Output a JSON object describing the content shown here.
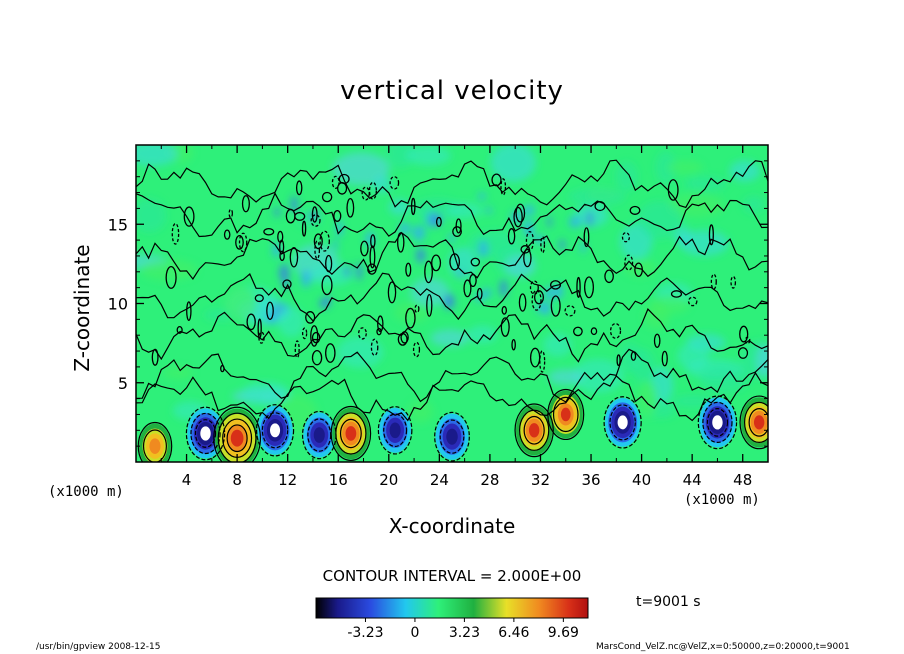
{
  "chart_data": {
    "type": "heatmap",
    "title": "vertical velocity",
    "xlabel": "X-coordinate",
    "ylabel": "Z-coordinate",
    "x_unit_label": "(x1000 m)",
    "x_ticks": [
      4,
      8,
      12,
      16,
      20,
      24,
      28,
      32,
      36,
      40,
      44,
      48
    ],
    "y_ticks": [
      5,
      10,
      15
    ],
    "xlim": [
      0,
      50
    ],
    "ylim": [
      0,
      20
    ],
    "contour_interval": "CONTOUR INTERVAL = 2.000E+00",
    "colorbar_ticks": [
      "-3.23",
      "0",
      "3.23",
      "6.46",
      "9.69"
    ],
    "colorbar_range": [
      -6.46,
      11.3
    ],
    "time_label": "t=9001 s",
    "colors": {
      "background_field": "#2ef07a",
      "negative_core": "#1a1a9a",
      "positive_core": "#ff6a1a",
      "contour": "#000000"
    },
    "features": [
      {
        "kind": "downdraft",
        "x": 5.5,
        "z": 1.8,
        "w": -6.0
      },
      {
        "kind": "updraft",
        "x": 8.0,
        "z": 1.5,
        "w": 9.5
      },
      {
        "kind": "downdraft",
        "x": 11.0,
        "z": 2.0,
        "w": -5.5
      },
      {
        "kind": "downdraft",
        "x": 14.5,
        "z": 1.7,
        "w": -4.0
      },
      {
        "kind": "updraft",
        "x": 17.0,
        "z": 1.8,
        "w": 6.5
      },
      {
        "kind": "downdraft",
        "x": 20.5,
        "z": 2.0,
        "w": -4.0
      },
      {
        "kind": "downdraft",
        "x": 25.0,
        "z": 1.6,
        "w": -4.5
      },
      {
        "kind": "updraft",
        "x": 31.5,
        "z": 2.0,
        "w": 6.0
      },
      {
        "kind": "updraft",
        "x": 34.0,
        "z": 3.0,
        "w": 5.0
      },
      {
        "kind": "downdraft",
        "x": 38.5,
        "z": 2.5,
        "w": -5.5
      },
      {
        "kind": "downdraft",
        "x": 46.0,
        "z": 2.5,
        "w": -6.0
      },
      {
        "kind": "updraft",
        "x": 49.3,
        "z": 2.5,
        "w": 6.0
      },
      {
        "kind": "updraft",
        "x": 1.5,
        "z": 1.0,
        "w": 4.0
      }
    ]
  },
  "footer": {
    "left": "/usr/bin/gpview  2008-12-15",
    "right": "MarsCond_VelZ.nc@VelZ,x=0:50000,z=0:20000,t=9001"
  }
}
